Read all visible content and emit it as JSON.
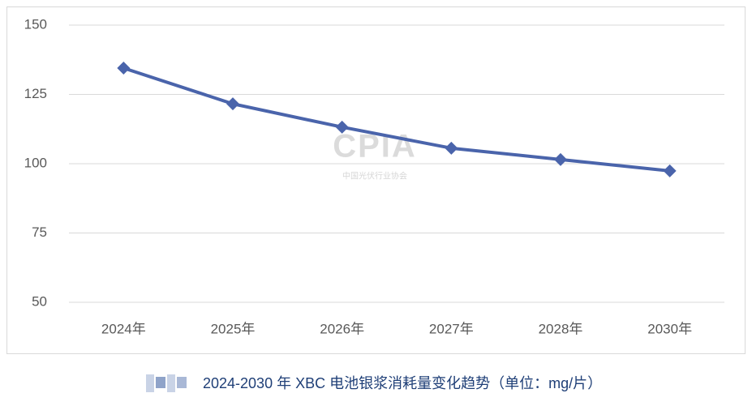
{
  "chart_data": {
    "type": "line",
    "title": "2024-2030 年 XBC 电池银浆消耗量变化趋势（单位：mg/片）",
    "watermark": "CPIA",
    "watermark_subtitle": "中国光伏行业协会",
    "categories": [
      "2024年",
      "2025年",
      "2026年",
      "2027年",
      "2028年",
      "2030年"
    ],
    "series": [
      {
        "name": "XBC 电池银浆消耗量",
        "color": "#4a64ab",
        "values": [
          134.5,
          121.6,
          113.2,
          105.6,
          101.5,
          97.4
        ]
      }
    ],
    "ylim": [
      50,
      150
    ],
    "yticks": [
      50,
      75,
      100,
      125,
      150
    ],
    "grid": true
  }
}
